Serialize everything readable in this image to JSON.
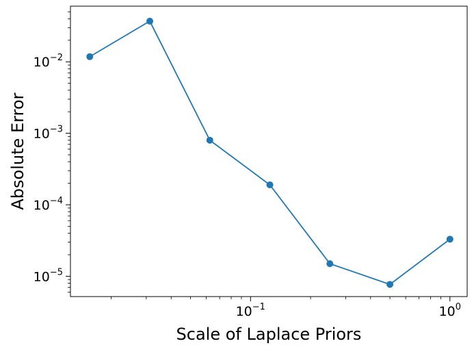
{
  "chart_data": {
    "type": "line",
    "xscale": "log",
    "yscale": "log",
    "xlabel": "Scale of Laplace Priors",
    "ylabel": "Absolute Error",
    "xlim": [
      0.0125,
      1.22
    ],
    "ylim": [
      5.2e-06,
      0.06
    ],
    "x_ticks": [
      {
        "value": 0.1,
        "base": "10",
        "exp": "−1"
      },
      {
        "value": 1,
        "base": "10",
        "exp": "0"
      }
    ],
    "y_ticks": [
      {
        "value": 1e-05,
        "base": "10",
        "exp": "−5"
      },
      {
        "value": 0.0001,
        "base": "10",
        "exp": "−4"
      },
      {
        "value": 0.001,
        "base": "10",
        "exp": "−3"
      },
      {
        "value": 0.01,
        "base": "10",
        "exp": "−2"
      }
    ],
    "grid": false,
    "series": [
      {
        "color": "#1f77b4",
        "marker": "circle",
        "x": [
          0.015625,
          0.03125,
          0.0625,
          0.125,
          0.25,
          0.5,
          1.0
        ],
        "y": [
          0.0118,
          0.037,
          0.0008,
          0.00019,
          1.5e-05,
          7.7e-06,
          3.3e-05
        ]
      }
    ]
  }
}
